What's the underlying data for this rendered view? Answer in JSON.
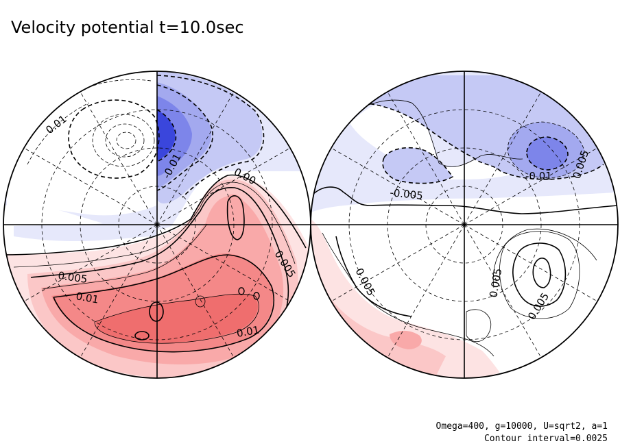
{
  "chart_data": {
    "type": "contour",
    "projection": "polar stereographic, two hemispheres",
    "title": "Velocity potential t=10.0sec",
    "parameters_text": "Omega=400, g=10000, U=sqrt2, a=1",
    "contour_interval_text": "Contour interval=0.0025",
    "contour_interval": 0.0025,
    "colors": {
      "positive": [
        "#fde3e3",
        "#fbc7c7",
        "#f9a9a9",
        "#f48888",
        "#ef6e6e"
      ],
      "negative": [
        "#e6e8fb",
        "#c5c9f5",
        "#a3a9ef",
        "#7d85ea",
        "#3a46dc"
      ],
      "line": "#000000"
    },
    "hemispheres": [
      {
        "name": "left",
        "contour_labels": [
          "0.01",
          "-0.01",
          "0.00",
          "0.005",
          "0.005",
          "0.01",
          "0.01"
        ],
        "extrema": [
          {
            "sign": "negative",
            "max_abs": 0.0175
          },
          {
            "sign": "negative",
            "max_abs": 0.0225
          },
          {
            "sign": "positive",
            "max_abs": 0.0175
          }
        ]
      },
      {
        "name": "right",
        "contour_labels": [
          "-0.005",
          "-0.01",
          "0.005",
          "0.005",
          "0.005",
          "0.005"
        ],
        "extrema": [
          {
            "sign": "negative",
            "max_abs": 0.0125
          },
          {
            "sign": "positive",
            "max_abs": 0.0075
          },
          {
            "sign": "positive",
            "max_abs": 0.01
          }
        ]
      }
    ]
  }
}
